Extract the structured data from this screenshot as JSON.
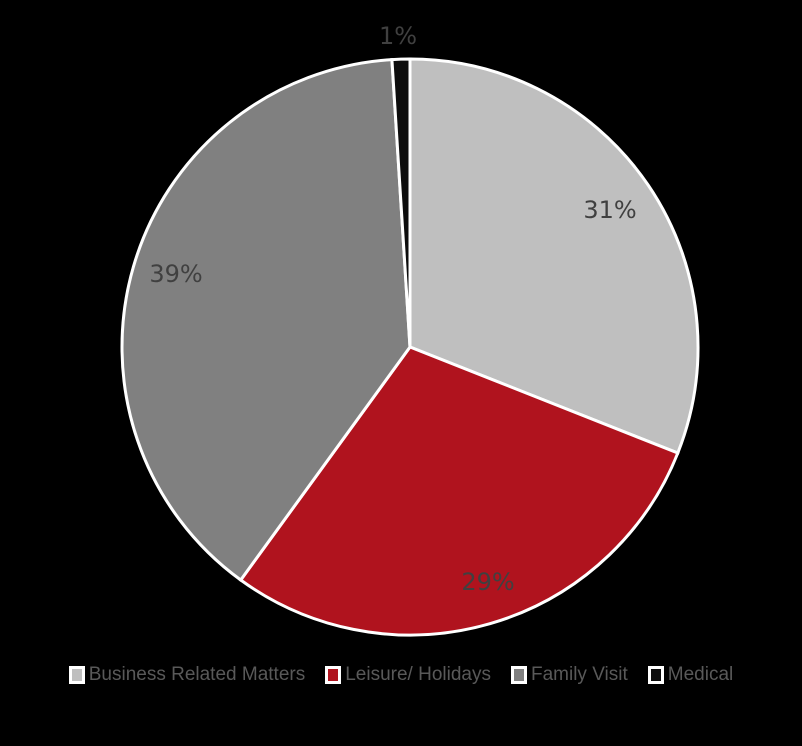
{
  "chart_data": {
    "type": "pie",
    "title": "",
    "categories": [
      "Business Related Matters",
      "Leisure/ Holidays",
      "Family Visit",
      "Medical"
    ],
    "values": [
      31,
      29,
      39,
      1
    ],
    "labels": [
      "31%",
      "29%",
      "39%",
      "1%"
    ],
    "colors": [
      "#bfbfbf",
      "#b0131e",
      "#808080",
      "#0d0d0d"
    ],
    "start_angle": "12 o'clock",
    "direction": "clockwise",
    "legend_position": "bottom"
  },
  "legend": {
    "items": [
      {
        "label": "Business Related Matters",
        "color": "#bfbfbf"
      },
      {
        "label": "Leisure/ Holidays",
        "color": "#b0131e"
      },
      {
        "label": "Family Visit",
        "color": "#808080"
      },
      {
        "label": "Medical",
        "color": "#0d0d0d"
      }
    ]
  },
  "background": "#000000"
}
